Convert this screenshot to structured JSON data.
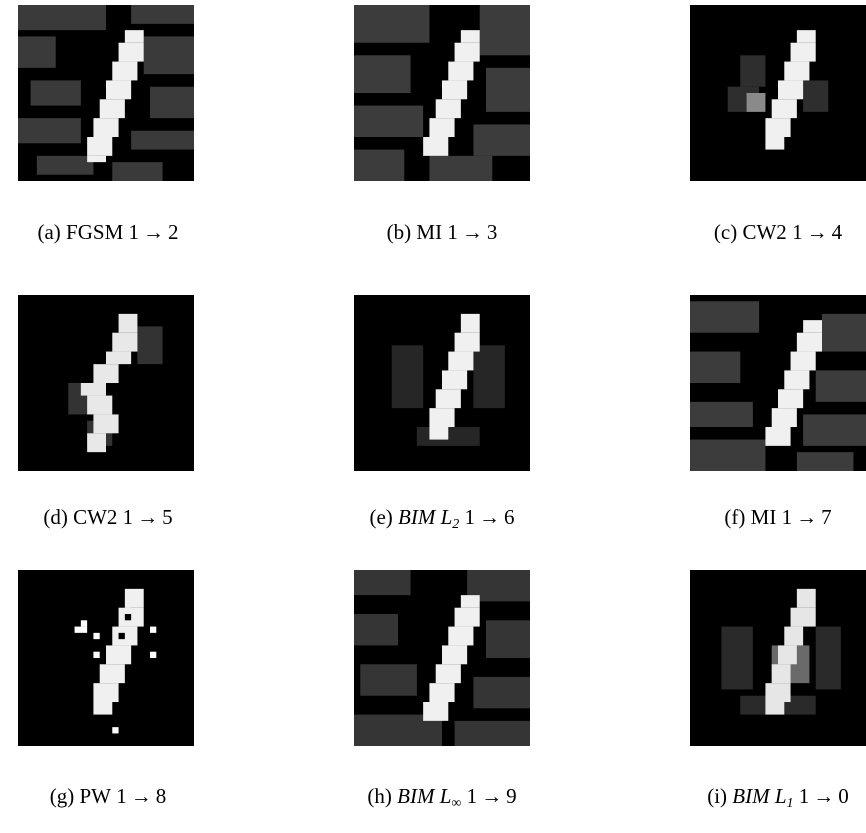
{
  "colors": {
    "background": "#000000",
    "noise_gray": "#3c3c3c",
    "stroke_white": "#f2f2f2"
  },
  "panels": [
    {
      "id": "a",
      "label": "(a)",
      "method": "FGSM",
      "method_sub": "",
      "source": "1",
      "arrow": "→",
      "target": "2"
    },
    {
      "id": "b",
      "label": "(b)",
      "method": "MI",
      "method_sub": "",
      "source": "1",
      "arrow": "→",
      "target": "3"
    },
    {
      "id": "c",
      "label": "(c)",
      "method": "CW2",
      "method_sub": "",
      "source": "1",
      "arrow": "→",
      "target": "4"
    },
    {
      "id": "d",
      "label": "(d)",
      "method": "CW2",
      "method_sub": "",
      "source": "1",
      "arrow": "→",
      "target": "5"
    },
    {
      "id": "e",
      "label": "(e)",
      "method": "BIM L",
      "method_sub": "2",
      "source": "1",
      "arrow": "→",
      "target": "6"
    },
    {
      "id": "f",
      "label": "(f)",
      "method": "MI",
      "method_sub": "",
      "source": "1",
      "arrow": "→",
      "target": "7"
    },
    {
      "id": "g",
      "label": "(g)",
      "method": "PW",
      "method_sub": "",
      "source": "1",
      "arrow": "→",
      "target": "8"
    },
    {
      "id": "h",
      "label": "(h)",
      "method": "BIM L",
      "method_sub": "∞",
      "source": "1",
      "arrow": "→",
      "target": "9"
    },
    {
      "id": "i",
      "label": "(i)",
      "method": "BIM L",
      "method_sub": "1",
      "source": "1",
      "arrow": "→",
      "target": "0"
    }
  ]
}
